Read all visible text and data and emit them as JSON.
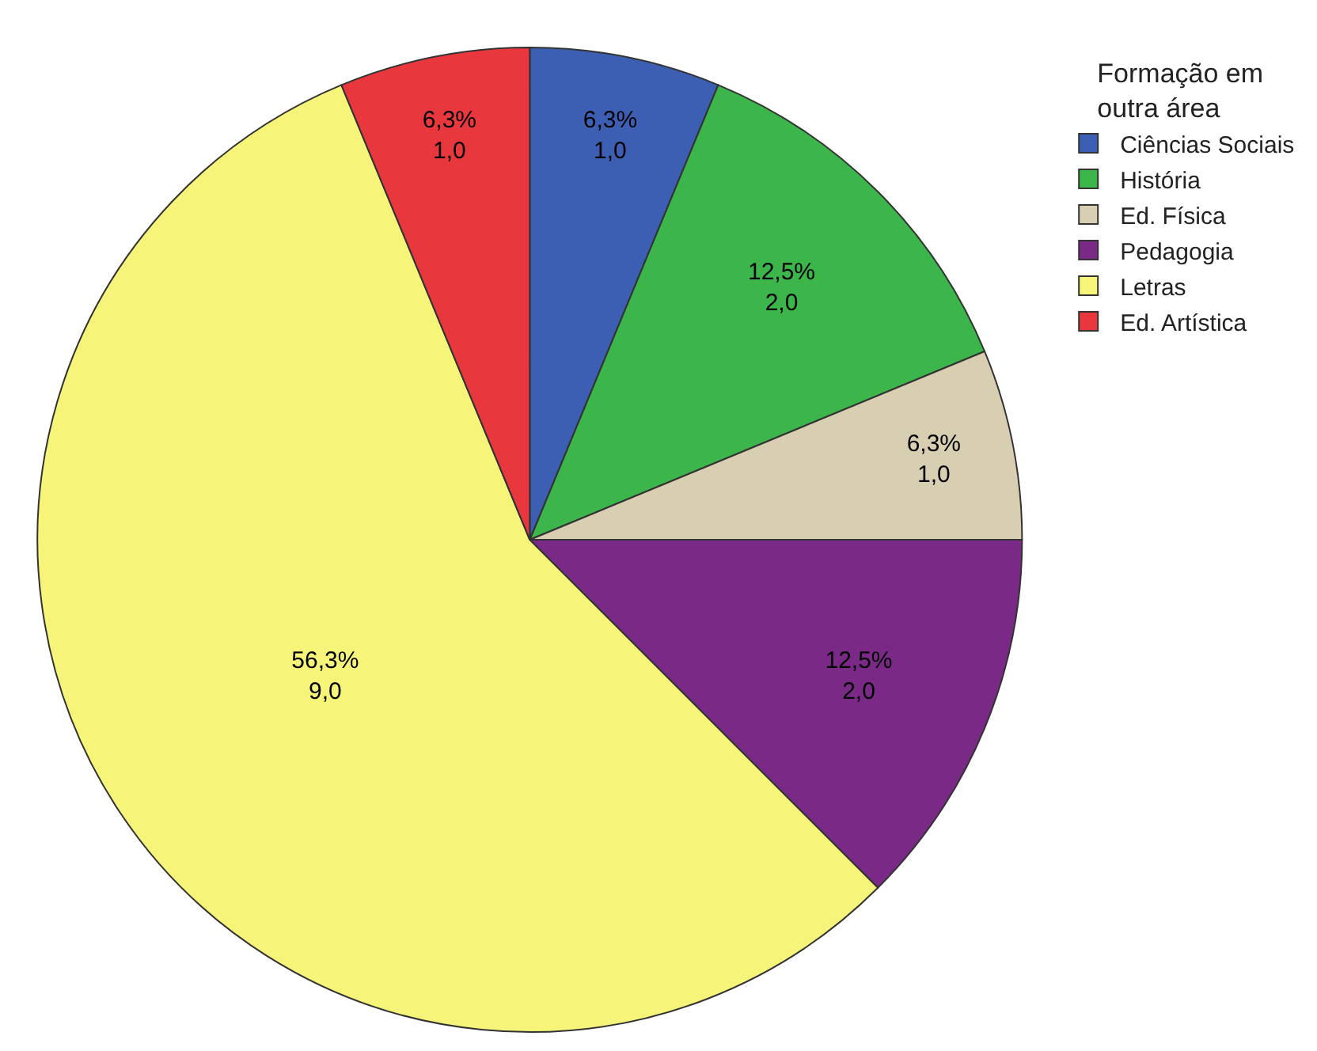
{
  "chart_data": {
    "type": "pie",
    "legend_title": "Formação em outra área",
    "legend": "top right",
    "categories": [
      "Ciências Sociais",
      "História",
      "Ed. Física",
      "Pedagogia",
      "Letras",
      "Ed. Artística"
    ],
    "values": [
      1,
      2,
      1,
      2,
      9,
      1
    ],
    "colors": [
      "#3d5fb3",
      "#3cb54b",
      "#d8ceb2",
      "#7a2a86",
      "#f6f57a",
      "#e8383d"
    ],
    "value_labels": [
      "6,3%\n1,0",
      "12,5%\n2,0",
      "6,3%\n1,0",
      "12,5%\n2,0",
      "56,3%\n9,0",
      "6,3%\n1,0"
    ]
  }
}
